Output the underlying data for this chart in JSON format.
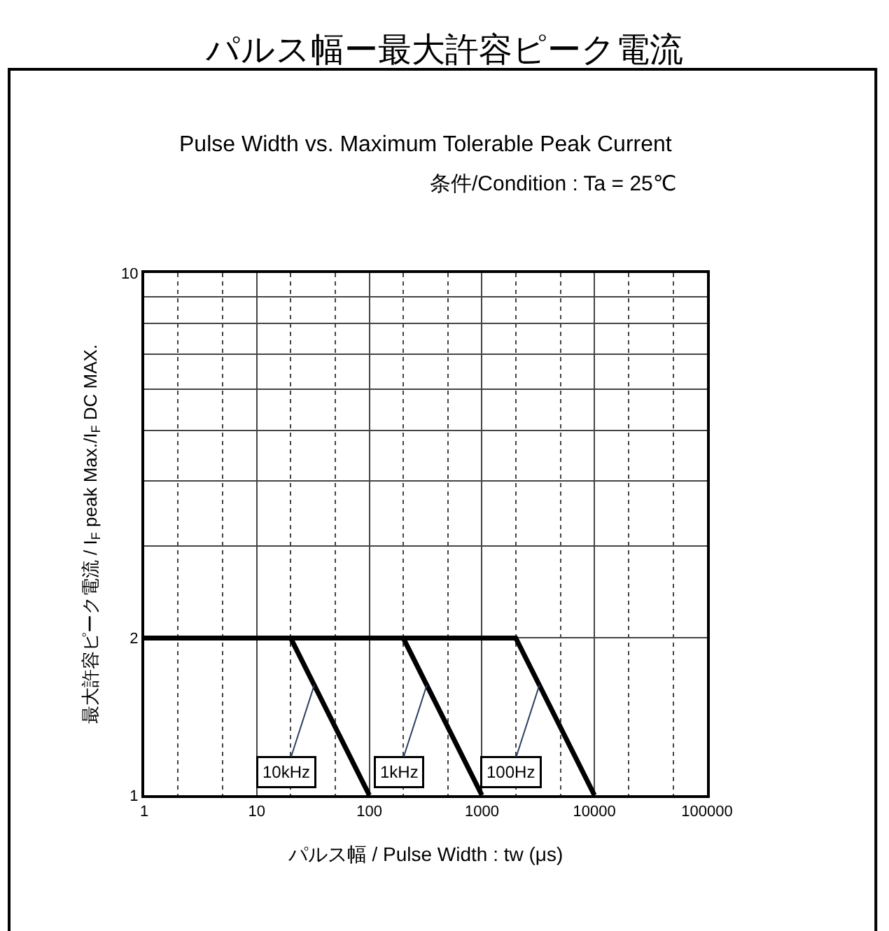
{
  "chart_data": {
    "type": "line",
    "title": "パルス幅ー最大許容ピーク電流",
    "subtitle": "Pulse Width vs. Maximum Tolerable Peak Current",
    "annotations": [
      "条件/Condition : Ta = 25℃"
    ],
    "xlabel": "パルス幅 / Pulse Width : tw (μs)",
    "ylabel": "最大許容ピーク電流 / I$_{F}$ peak Max./I$_{F}$ DC MAX.",
    "log": "xy",
    "xlim": [
      1,
      100000
    ],
    "ylim": [
      1,
      10
    ],
    "xticks": [
      1,
      10,
      100,
      1000,
      10000,
      100000
    ],
    "yticks": [
      1,
      2,
      {
        "value": 3,
        "label": null
      },
      {
        "value": 4,
        "label": null
      },
      {
        "value": 5,
        "label": null
      },
      {
        "value": 6,
        "label": null
      },
      {
        "value": 7,
        "label": null
      },
      {
        "value": 8,
        "label": null
      },
      {
        "value": 9,
        "label": null
      },
      10
    ],
    "grid": true,
    "legend": false,
    "marker": "none",
    "line_style": "solid",
    "series": [
      {
        "name": "10kHz",
        "color": "#000000",
        "x": [
          20,
          100
        ],
        "values": [
          2,
          1
        ]
      },
      {
        "name": "1kHz",
        "color": "#000000",
        "x": [
          200,
          1000
        ],
        "values": [
          2,
          1
        ]
      },
      {
        "name": "100Hz",
        "color": "#000000",
        "x": [
          1,
          2000,
          10000
        ],
        "values": [
          2,
          2,
          1
        ]
      }
    ]
  }
}
